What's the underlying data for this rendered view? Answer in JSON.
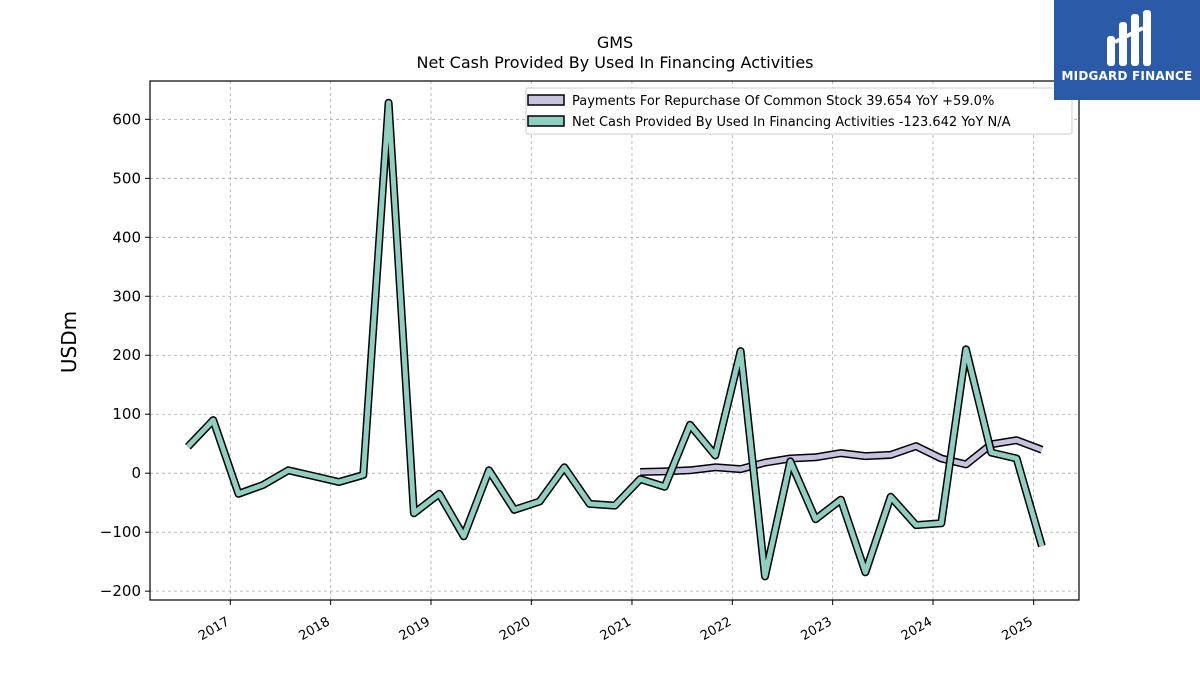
{
  "brand": {
    "name": "MIDGARD FINANCE",
    "bg_color": "#2a5aa8",
    "icon": "midgard-logo-mark"
  },
  "chart_data": {
    "type": "line",
    "title": "GMS",
    "subtitle": "Net Cash Provided By Used In Financing Activities",
    "xlabel": "",
    "ylabel": "USDm",
    "ylim": [
      -215,
      665
    ],
    "yticks": [
      -200,
      -100,
      0,
      100,
      200,
      300,
      400,
      500,
      600
    ],
    "ytick_labels": [
      "−200",
      "−100",
      "0",
      "100",
      "200",
      "300",
      "400",
      "500",
      "600"
    ],
    "xlim": [
      "2016-03-15",
      "2025-06-15"
    ],
    "xticks": [
      "2017-01-01",
      "2018-01-01",
      "2019-01-01",
      "2020-01-01",
      "2021-01-01",
      "2022-01-01",
      "2023-01-01",
      "2024-01-01",
      "2025-01-01"
    ],
    "xtick_labels": [
      "2017",
      "2018",
      "2019",
      "2020",
      "2021",
      "2022",
      "2023",
      "2024",
      "2025"
    ],
    "grid": true,
    "legend_position": "top-right",
    "series": [
      {
        "name": "Payments For Repurchase Of Common Stock",
        "legend_label": "Payments For Repurchase Of Common Stock  39.654 YoY +59.0%",
        "color": "#c6c2df",
        "x": [
          "2021-01-31",
          "2021-04-30",
          "2021-07-31",
          "2021-10-31",
          "2022-01-31",
          "2022-04-30",
          "2022-07-31",
          "2022-10-31",
          "2023-01-31",
          "2023-04-30",
          "2023-07-31",
          "2023-10-31",
          "2024-01-31",
          "2024-04-30",
          "2024-07-31",
          "2024-10-31",
          "2025-01-31"
        ],
        "y": [
          2,
          3,
          5,
          10,
          7,
          18,
          25,
          27,
          34,
          29,
          31,
          46,
          25,
          15,
          49,
          56,
          39.654
        ]
      },
      {
        "name": "Net Cash Provided By Used In Financing Activities",
        "legend_label": "Net Cash Provided By Used In Financing Activities  -123.642 YoY N/A",
        "color": "#8ecfc2",
        "x": [
          "2016-07-31",
          "2016-10-31",
          "2017-01-31",
          "2017-04-30",
          "2017-07-31",
          "2017-10-31",
          "2018-01-31",
          "2018-04-30",
          "2018-07-31",
          "2018-10-31",
          "2019-01-31",
          "2019-04-30",
          "2019-07-31",
          "2019-10-31",
          "2020-01-31",
          "2020-04-30",
          "2020-07-31",
          "2020-10-31",
          "2021-01-31",
          "2021-04-30",
          "2021-07-31",
          "2021-10-31",
          "2022-01-31",
          "2022-04-30",
          "2022-07-31",
          "2022-10-31",
          "2023-01-31",
          "2023-04-30",
          "2023-07-31",
          "2023-10-31",
          "2024-01-31",
          "2024-04-30",
          "2024-07-31",
          "2024-10-31",
          "2025-01-31"
        ],
        "y": [
          45,
          90,
          -35,
          -20,
          5,
          -5,
          -15,
          -3,
          628,
          -68,
          -35,
          -107,
          5,
          -62,
          -48,
          10,
          -52,
          -55,
          -10,
          -23,
          82,
          30,
          207,
          -175,
          20,
          -78,
          -45,
          -168,
          -40,
          -88,
          -85,
          210,
          35,
          25,
          -123.642
        ]
      }
    ]
  }
}
